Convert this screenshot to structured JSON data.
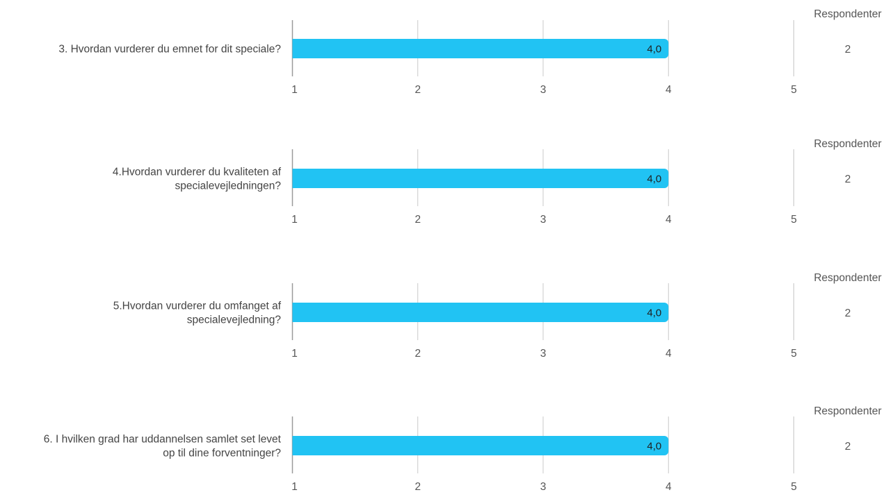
{
  "chart_data": [
    {
      "type": "bar",
      "orientation": "horizontal",
      "category": "3. Hvordan vurderer du emnet for dit speciale?",
      "value": 4.0,
      "value_label": "4,0",
      "xlim": [
        1,
        5
      ],
      "ticks": [
        "1",
        "2",
        "3",
        "4",
        "5"
      ],
      "respondents_header": "Respondenter",
      "respondents": "2"
    },
    {
      "type": "bar",
      "orientation": "horizontal",
      "category": "4.Hvordan vurderer du kvaliteten af specialevejledningen?",
      "category_lines": [
        "4.Hvordan vurderer du kvaliteten af",
        "specialevejledningen?"
      ],
      "value": 4.0,
      "value_label": "4,0",
      "xlim": [
        1,
        5
      ],
      "ticks": [
        "1",
        "2",
        "3",
        "4",
        "5"
      ],
      "respondents_header": "Respondenter",
      "respondents": "2"
    },
    {
      "type": "bar",
      "orientation": "horizontal",
      "category": "5.Hvordan vurderer du omfanget af specialevejledning?",
      "category_lines": [
        "5.Hvordan vurderer du omfanget af",
        "specialevejledning?"
      ],
      "value": 4.0,
      "value_label": "4,0",
      "xlim": [
        1,
        5
      ],
      "ticks": [
        "1",
        "2",
        "3",
        "4",
        "5"
      ],
      "respondents_header": "Respondenter",
      "respondents": "2"
    },
    {
      "type": "bar",
      "orientation": "horizontal",
      "category": "6. I hvilken grad har uddannelsen samlet set levet op til dine forventninger?",
      "category_lines": [
        "6. I hvilken grad har uddannelsen samlet set levet",
        "op til dine forventninger?"
      ],
      "value": 4.0,
      "value_label": "4,0",
      "xlim": [
        1,
        5
      ],
      "ticks": [
        "1",
        "2",
        "3",
        "4",
        "5"
      ],
      "respondents_header": "Respondenter",
      "respondents": "2"
    }
  ],
  "colors": {
    "bar": "#21c3f3",
    "gridline": "#c8c8c8",
    "axis": "#9a9a9a",
    "text": "#444444"
  }
}
